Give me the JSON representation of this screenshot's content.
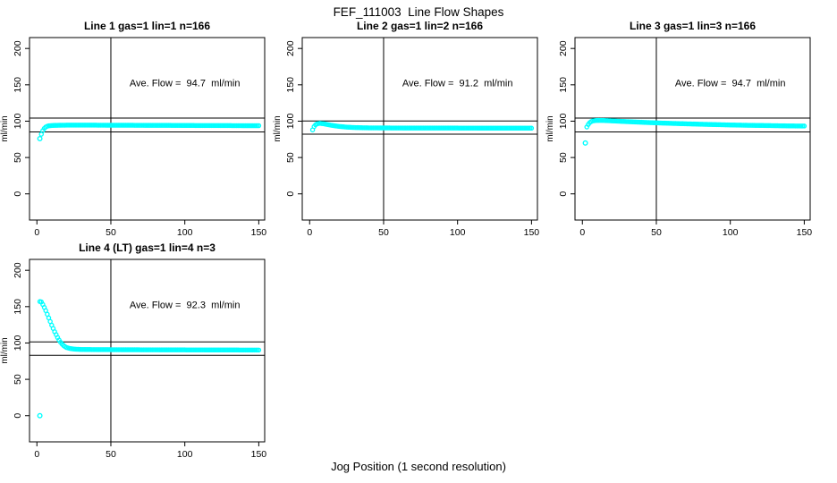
{
  "figure": {
    "title": "FEF_111003  Line Flow Shapes",
    "xlabel": "Jog Position (1 second resolution)",
    "marker_color": "#00FFFF",
    "axis_color": "#000000",
    "background": "#FFFFFF"
  },
  "chart_data": [
    {
      "type": "scatter",
      "title": "Line 1 gas=1 lin=1 n=166",
      "annotation": "Ave. Flow =  94.7  ml/min",
      "ave_flow": 94.7,
      "ylabel": "ml/min",
      "xlim": [
        -5,
        154
      ],
      "ylim": [
        -36,
        215
      ],
      "xticks": [
        0,
        50,
        100,
        150
      ],
      "yticks": [
        0,
        50,
        100,
        150,
        200
      ],
      "vline": 50,
      "hlines": [
        104.2,
        85.2
      ],
      "outliers": [
        [
          2,
          76
        ]
      ],
      "points": [
        [
          3,
          82
        ],
        [
          4,
          87
        ],
        [
          5,
          90
        ],
        [
          6,
          92
        ],
        [
          7,
          93
        ],
        [
          8,
          93.6
        ],
        [
          10,
          94
        ],
        [
          12,
          94.2
        ],
        [
          15,
          94.4
        ],
        [
          20,
          94.5
        ],
        [
          25,
          94.5
        ],
        [
          30,
          94.5
        ],
        [
          40,
          94.5
        ],
        [
          50,
          94.4
        ],
        [
          60,
          94.4
        ],
        [
          70,
          94.3
        ],
        [
          80,
          94.2
        ],
        [
          90,
          94.2
        ],
        [
          100,
          94.1
        ],
        [
          110,
          94.0
        ],
        [
          120,
          94.0
        ],
        [
          130,
          93.9
        ],
        [
          140,
          93.8
        ],
        [
          150,
          93.8
        ]
      ]
    },
    {
      "type": "scatter",
      "title": "Line 2 gas=1 lin=2 n=166",
      "annotation": "Ave. Flow =  91.2  ml/min",
      "ave_flow": 91.2,
      "ylabel": "ml/min",
      "xlim": [
        -5,
        154
      ],
      "ylim": [
        -36,
        215
      ],
      "xticks": [
        0,
        50,
        100,
        150
      ],
      "yticks": [
        0,
        50,
        100,
        150,
        200
      ],
      "vline": 50,
      "hlines": [
        100.3,
        82.1
      ],
      "outliers": [],
      "points": [
        [
          2,
          88
        ],
        [
          3,
          92.5
        ],
        [
          4,
          95
        ],
        [
          5,
          96.3
        ],
        [
          6,
          96.8
        ],
        [
          7,
          97
        ],
        [
          8,
          96.8
        ],
        [
          10,
          96.2
        ],
        [
          12,
          95.4
        ],
        [
          14,
          94.6
        ],
        [
          16,
          93.9
        ],
        [
          18,
          93.3
        ],
        [
          20,
          92.8
        ],
        [
          23,
          92.2
        ],
        [
          26,
          91.7
        ],
        [
          30,
          91.3
        ],
        [
          35,
          91.0
        ],
        [
          40,
          90.8
        ],
        [
          50,
          90.7
        ],
        [
          60,
          90.6
        ],
        [
          80,
          90.5
        ],
        [
          100,
          90.5
        ],
        [
          120,
          90.4
        ],
        [
          150,
          90.4
        ]
      ]
    },
    {
      "type": "scatter",
      "title": "Line 3 gas=1 lin=3 n=166",
      "annotation": "Ave. Flow =  94.7  ml/min",
      "ave_flow": 94.7,
      "ylabel": "ml/min",
      "xlim": [
        -5,
        154
      ],
      "ylim": [
        -36,
        215
      ],
      "xticks": [
        0,
        50,
        100,
        150
      ],
      "yticks": [
        0,
        50,
        100,
        150,
        200
      ],
      "vline": 50,
      "hlines": [
        104.2,
        85.2
      ],
      "outliers": [
        [
          2,
          70
        ]
      ],
      "points": [
        [
          3,
          92
        ],
        [
          4,
          95.5
        ],
        [
          5,
          98
        ],
        [
          6,
          99.5
        ],
        [
          7,
          100.4
        ],
        [
          9,
          100.9
        ],
        [
          12,
          101.1
        ],
        [
          15,
          100.9
        ],
        [
          20,
          100.4
        ],
        [
          25,
          99.9
        ],
        [
          30,
          99.4
        ],
        [
          40,
          98.5
        ],
        [
          50,
          97.7
        ],
        [
          60,
          97.0
        ],
        [
          70,
          96.4
        ],
        [
          80,
          95.8
        ],
        [
          90,
          95.3
        ],
        [
          100,
          94.8
        ],
        [
          110,
          94.4
        ],
        [
          120,
          94.1
        ],
        [
          130,
          93.8
        ],
        [
          140,
          93.5
        ],
        [
          150,
          93.3
        ]
      ]
    },
    {
      "type": "scatter",
      "title": "Line 4 (LT) gas=1 lin=4 n=3",
      "annotation": "Ave. Flow =  92.3  ml/min",
      "ave_flow": 92.3,
      "ylabel": "ml/min",
      "xlim": [
        -5,
        154
      ],
      "ylim": [
        -36,
        215
      ],
      "xticks": [
        0,
        50,
        100,
        150
      ],
      "yticks": [
        0,
        50,
        100,
        150,
        200
      ],
      "vline": 50,
      "hlines": [
        101.5,
        83.1
      ],
      "outliers": [
        [
          2,
          0
        ]
      ],
      "points": [
        [
          2,
          157
        ],
        [
          3,
          156.5
        ],
        [
          4,
          153
        ],
        [
          5,
          149
        ],
        [
          6,
          144.5
        ],
        [
          7,
          139.5
        ],
        [
          8,
          134.5
        ],
        [
          9,
          129.5
        ],
        [
          10,
          124.5
        ],
        [
          11,
          120
        ],
        [
          12,
          115.5
        ],
        [
          13,
          111.5
        ],
        [
          14,
          107.5
        ],
        [
          15,
          104
        ],
        [
          16,
          101
        ],
        [
          17,
          98.5
        ],
        [
          18,
          96.5
        ],
        [
          19,
          95
        ],
        [
          20,
          93.8
        ],
        [
          22,
          92.6
        ],
        [
          24,
          91.9
        ],
        [
          26,
          91.5
        ],
        [
          28,
          91.3
        ],
        [
          30,
          91.1
        ],
        [
          35,
          91.0
        ],
        [
          40,
          90.9
        ],
        [
          50,
          90.8
        ],
        [
          60,
          90.7
        ],
        [
          80,
          90.6
        ],
        [
          100,
          90.5
        ],
        [
          120,
          90.4
        ],
        [
          150,
          90.3
        ]
      ]
    }
  ]
}
